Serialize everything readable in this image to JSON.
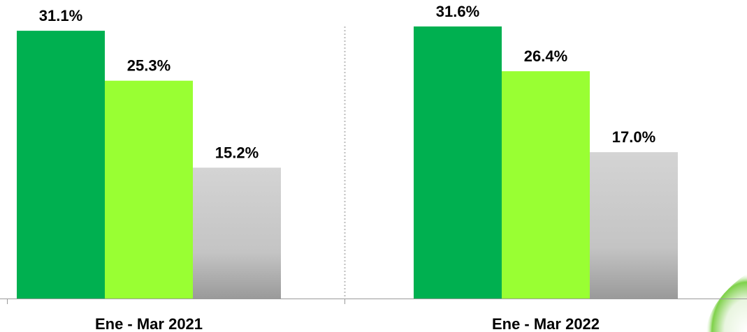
{
  "chart_data": {
    "type": "bar",
    "categories": [
      "Ene - Mar 2021",
      "Ene - Mar 2022"
    ],
    "series": [
      {
        "values": [
          31.1,
          31.6
        ],
        "color": "#00B050"
      },
      {
        "values": [
          25.3,
          26.4
        ],
        "color": "#99FF33"
      },
      {
        "values": [
          15.2,
          17.0
        ],
        "color": "#C8C8C8"
      }
    ],
    "data_labels": [
      [
        "31.1%",
        "31.6%"
      ],
      [
        "25.3%",
        "26.4%"
      ],
      [
        "15.2%",
        "17.0%"
      ]
    ],
    "value_suffix": "%",
    "title": "",
    "xlabel": "",
    "ylabel": "",
    "ylim": [
      0,
      32
    ],
    "grid": false,
    "legend": "none",
    "category_separator": "dotted"
  }
}
